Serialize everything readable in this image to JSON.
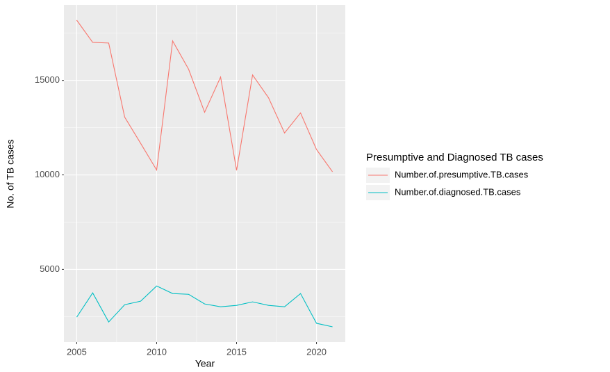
{
  "chart_data": {
    "type": "line",
    "x_label": "Year",
    "y_label": "No. of TB cases",
    "legend_title": "Presumptive and Diagnosed TB cases",
    "legend_position": "right",
    "x": [
      2005,
      2006,
      2007,
      2008,
      2009,
      2010,
      2011,
      2012,
      2013,
      2014,
      2015,
      2016,
      2017,
      2018,
      2019,
      2020,
      2021
    ],
    "series": [
      {
        "name": "Number.of.presumptive.TB.cases",
        "color": "#F8766D",
        "values": [
          18190,
          17015,
          16980,
          13060,
          11670,
          10260,
          17090,
          15590,
          13315,
          15180,
          10240,
          15290,
          14080,
          12220,
          13280,
          11340,
          10165
        ]
      },
      {
        "name": "Number.of.diagnosed.TB.cases",
        "color": "#00BFC4",
        "values": [
          2470,
          3755,
          2215,
          3130,
          3315,
          4120,
          3720,
          3680,
          3170,
          3020,
          3095,
          3280,
          3095,
          3020,
          3720,
          2145,
          1960
        ]
      }
    ],
    "xlim": [
      2004.2,
      2021.8
    ],
    "xticks": [
      2005,
      2010,
      2015,
      2020
    ],
    "ylim": [
      1150,
      19000
    ],
    "yticks": [
      5000,
      10000,
      15000
    ],
    "grid": true
  }
}
